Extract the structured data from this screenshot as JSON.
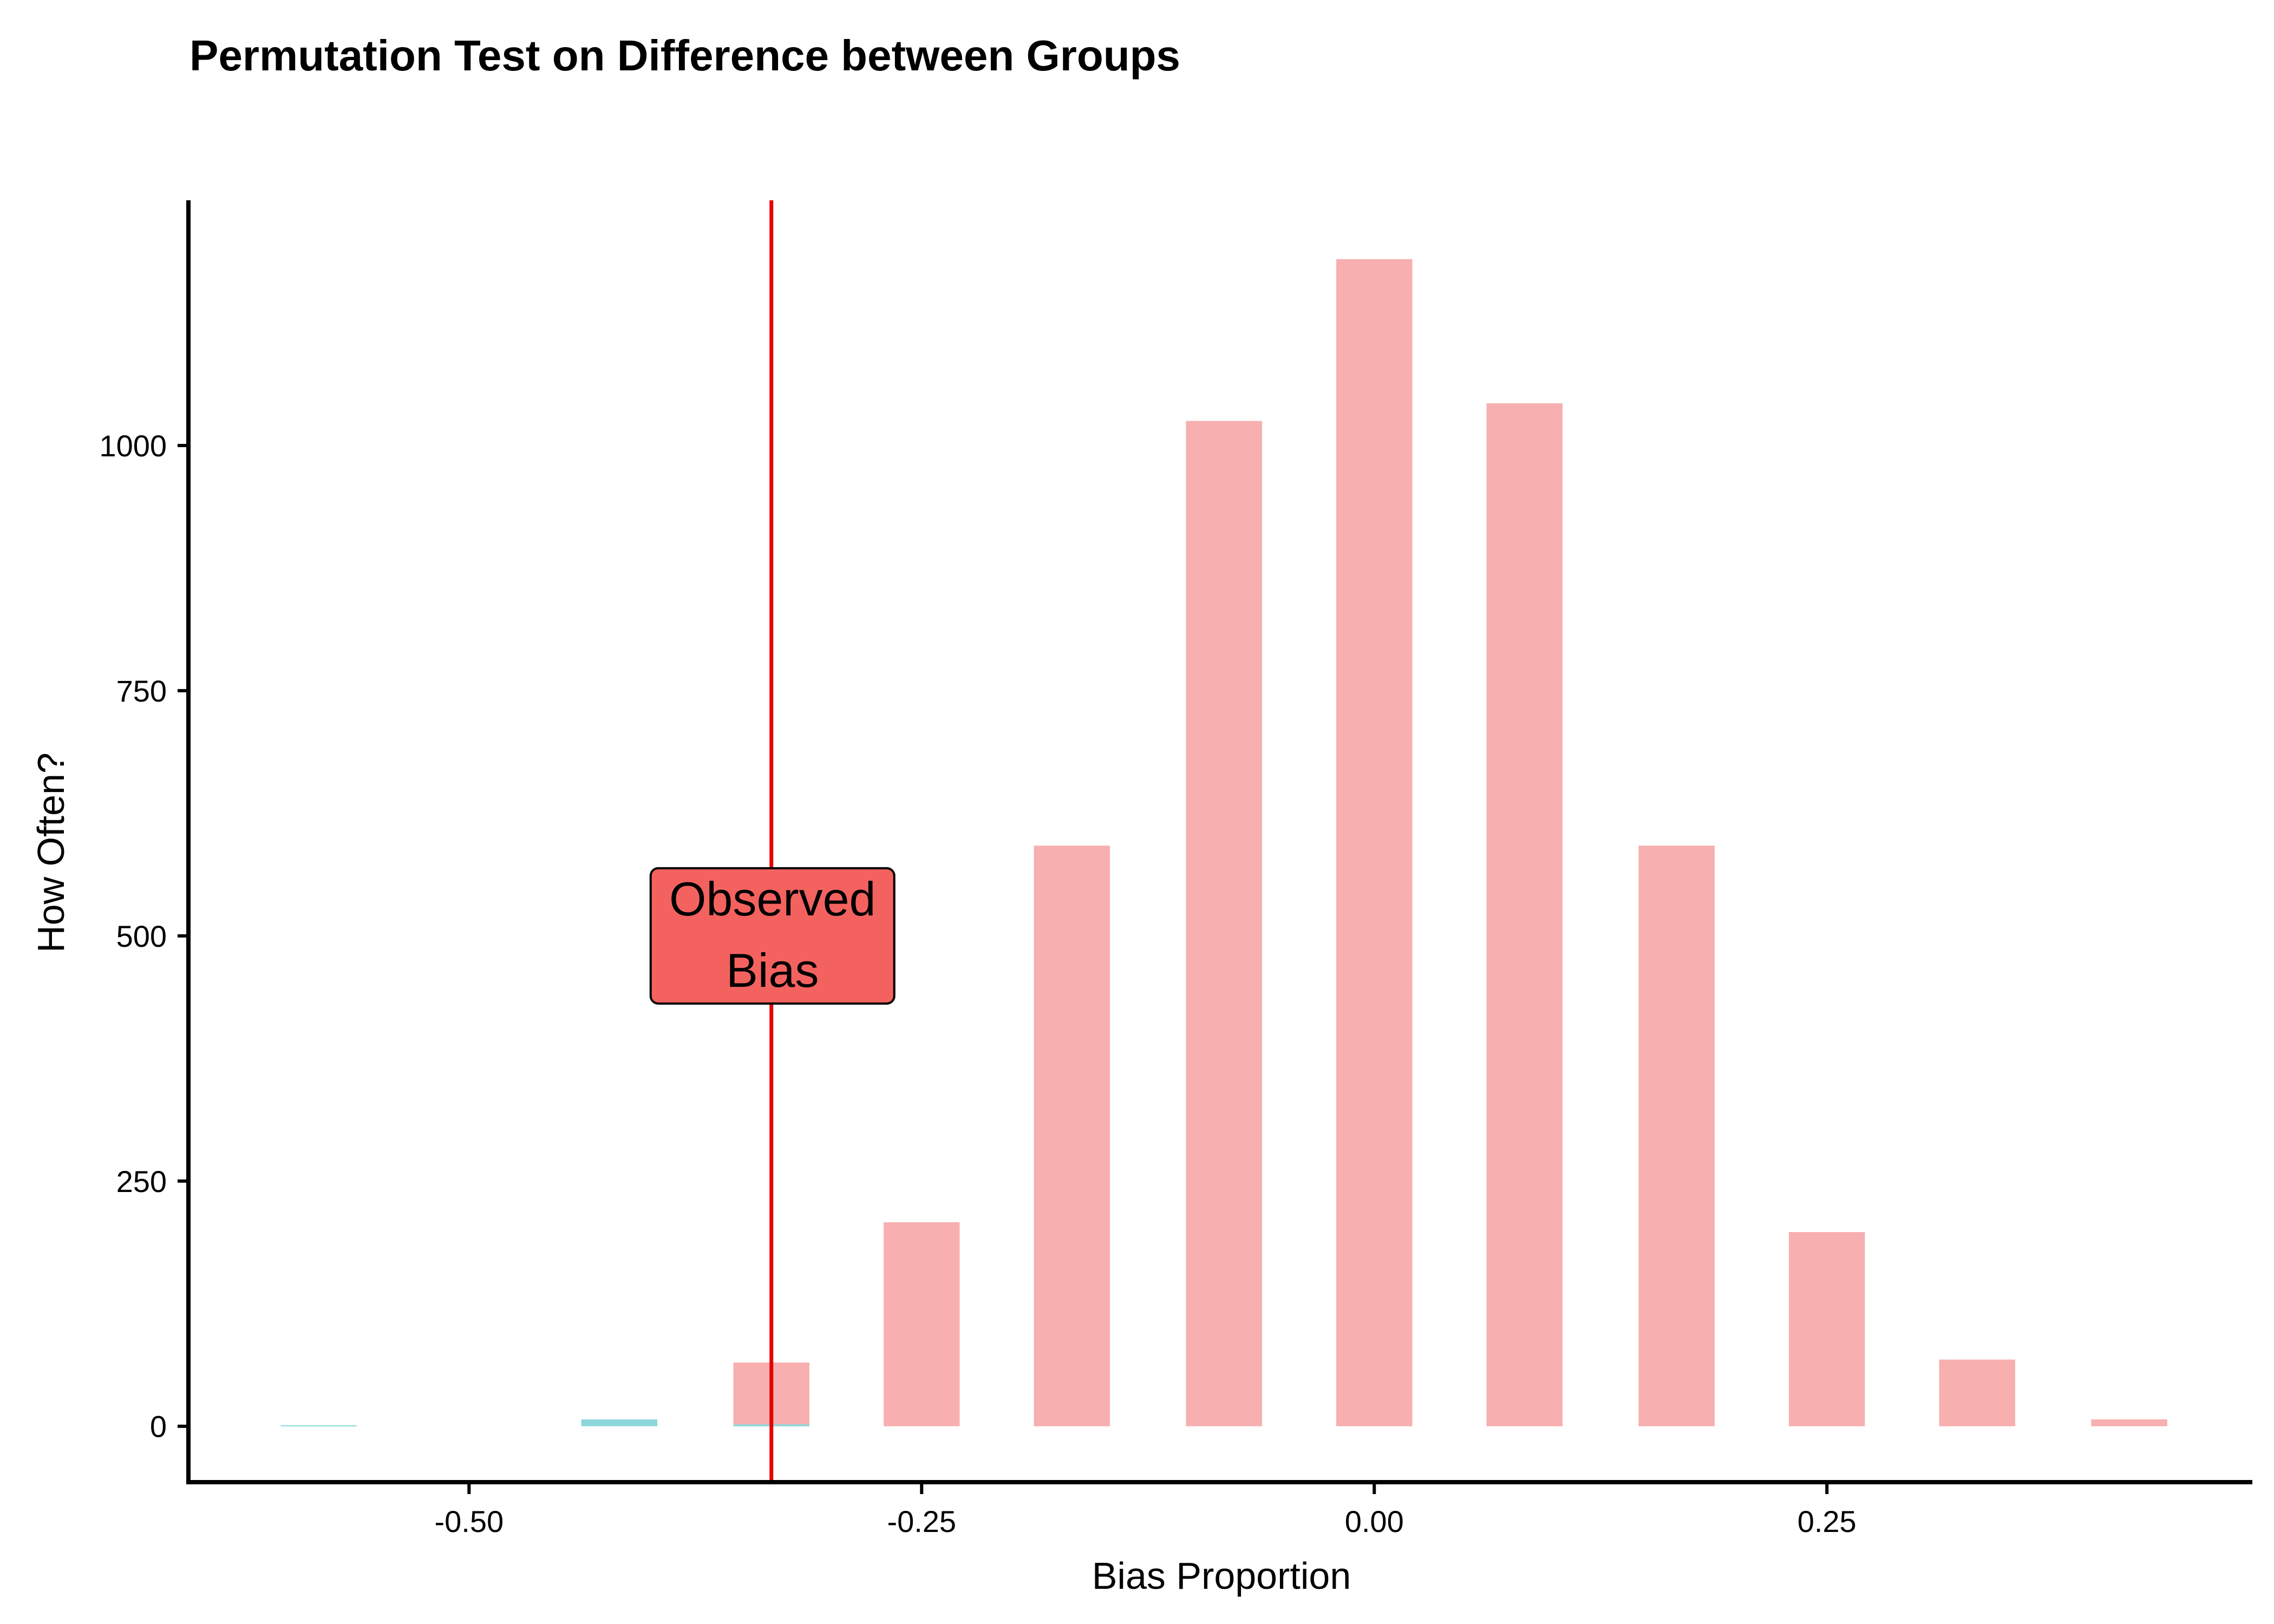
{
  "chart_data": {
    "type": "bar",
    "title": "Permutation Test on Difference between Groups",
    "xlabel": "Bias Proportion",
    "ylabel": "How Often?",
    "xlim": [
      -0.655,
      0.485
    ],
    "ylim": [
      -57,
      1250
    ],
    "xticks": [
      -0.5,
      -0.25,
      0.0,
      0.25
    ],
    "xtick_labels": [
      "-0.50",
      "-0.25",
      "0.00",
      "0.25"
    ],
    "yticks": [
      0,
      250,
      500,
      750,
      1000
    ],
    "ytick_labels": [
      "0",
      "250",
      "500",
      "750",
      "1000"
    ],
    "grid": false,
    "legend": "none",
    "bar_width": 0.042,
    "series": [
      {
        "color": "#F8AFAF",
        "points": [
          {
            "x": -0.333,
            "y": 65
          },
          {
            "x": -0.25,
            "y": 208
          },
          {
            "x": -0.167,
            "y": 592
          },
          {
            "x": -0.083,
            "y": 1025
          },
          {
            "x": 0.0,
            "y": 1190
          },
          {
            "x": 0.083,
            "y": 1043
          },
          {
            "x": 0.167,
            "y": 592
          },
          {
            "x": 0.25,
            "y": 198
          },
          {
            "x": 0.333,
            "y": 68
          },
          {
            "x": 0.417,
            "y": 7
          }
        ]
      },
      {
        "color": "#8DD7DA",
        "points": [
          {
            "x": -0.583,
            "y": 1
          },
          {
            "x": -0.417,
            "y": 7
          },
          {
            "x": -0.333,
            "y": 2
          }
        ]
      }
    ],
    "observed_line": {
      "x": -0.333,
      "color": "#E60000"
    },
    "annotation": {
      "lines": [
        "Observed",
        "Bias"
      ],
      "x": -0.333,
      "y": 500,
      "fill": "#F4625F"
    }
  }
}
